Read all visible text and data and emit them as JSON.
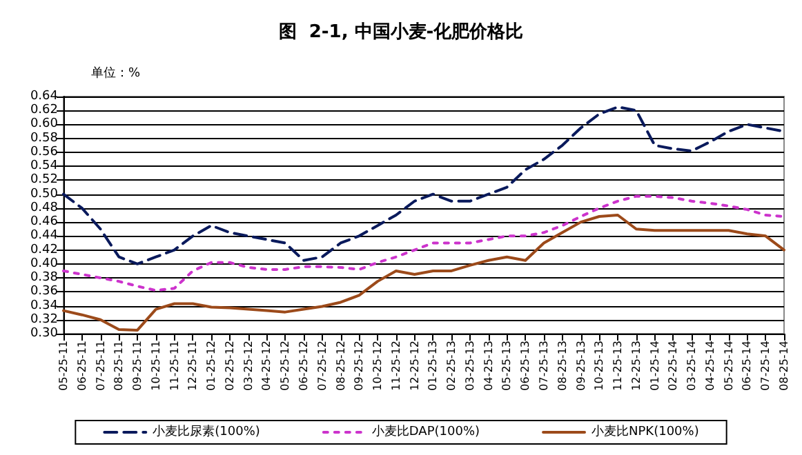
{
  "chart_data": {
    "type": "line",
    "title": "图  2-1, 中国小麦-化肥价格比",
    "ylabel": "单位：%",
    "categories": [
      "05-25-11",
      "06-25-11",
      "07-25-11",
      "08-25-11",
      "09-25-11",
      "10-25-11",
      "11-25-11",
      "12-25-11",
      "01-25-12",
      "02-25-12",
      "03-25-12",
      "04-25-12",
      "05-25-12",
      "06-25-12",
      "07-25-12",
      "08-25-12",
      "09-25-12",
      "10-25-12",
      "11-25-12",
      "12-25-12",
      "01-25-13",
      "02-25-13",
      "03-25-13",
      "04-25-13",
      "05-25-13",
      "06-25-13",
      "07-25-13",
      "08-25-13",
      "09-25-13",
      "10-25-13",
      "11-25-13",
      "12-25-13",
      "01-25-14",
      "02-25-14",
      "03-25-14",
      "04-25-14",
      "05-25-14",
      "06-25-14",
      "07-25-14",
      "08-25-14"
    ],
    "series": [
      {
        "name": "小麦比尿素(100%)",
        "color": "#0a1a5c",
        "line_style": "dashed",
        "values": [
          0.5,
          0.48,
          0.45,
          0.41,
          0.4,
          0.41,
          0.42,
          0.44,
          0.455,
          0.445,
          0.44,
          0.435,
          0.43,
          0.405,
          0.41,
          0.43,
          0.44,
          0.455,
          0.47,
          0.49,
          0.5,
          0.49,
          0.49,
          0.5,
          0.51,
          0.535,
          0.55,
          0.57,
          0.595,
          0.615,
          0.625,
          0.62,
          0.57,
          0.565,
          0.562,
          0.575,
          0.59,
          0.6,
          0.595,
          0.59
        ]
      },
      {
        "name": "小麦比DAP(100%)",
        "color": "#cc33cc",
        "line_style": "dotted",
        "values": [
          0.39,
          0.385,
          0.38,
          0.375,
          0.368,
          0.362,
          0.365,
          0.39,
          0.402,
          0.402,
          0.395,
          0.392,
          0.392,
          0.396,
          0.396,
          0.395,
          0.392,
          0.402,
          0.41,
          0.42,
          0.43,
          0.43,
          0.43,
          0.435,
          0.44,
          0.44,
          0.445,
          0.455,
          0.468,
          0.48,
          0.49,
          0.497,
          0.497,
          0.495,
          0.49,
          0.487,
          0.483,
          0.478,
          0.47,
          0.468
        ]
      },
      {
        "name": "小麦比NPK(100%)",
        "color": "#9c4a1a",
        "line_style": "solid",
        "values": [
          0.333,
          0.327,
          0.32,
          0.306,
          0.305,
          0.335,
          0.343,
          0.343,
          0.338,
          0.337,
          0.335,
          0.333,
          0.331,
          0.335,
          0.339,
          0.345,
          0.355,
          0.375,
          0.39,
          0.385,
          0.39,
          0.39,
          0.398,
          0.405,
          0.41,
          0.405,
          0.43,
          0.445,
          0.46,
          0.468,
          0.47,
          0.45,
          0.448,
          0.448,
          0.448,
          0.448,
          0.448,
          0.443,
          0.44,
          0.42
        ]
      }
    ],
    "ylim": [
      0.3,
      0.64
    ],
    "yticks": [
      {
        "value": 0.3,
        "label": "0.30"
      },
      0.32,
      0.34,
      0.36,
      0.38,
      {
        "value": 0.4,
        "label": "0.40"
      },
      0.42,
      0.44,
      0.46,
      0.48,
      {
        "value": 0.5,
        "label": "0.50"
      },
      0.52,
      0.54,
      0.56,
      0.58,
      {
        "value": 0.6,
        "label": "0.60"
      },
      0.62,
      0.64
    ],
    "grid": "y",
    "legend": "bottom",
    "marker": "none"
  }
}
